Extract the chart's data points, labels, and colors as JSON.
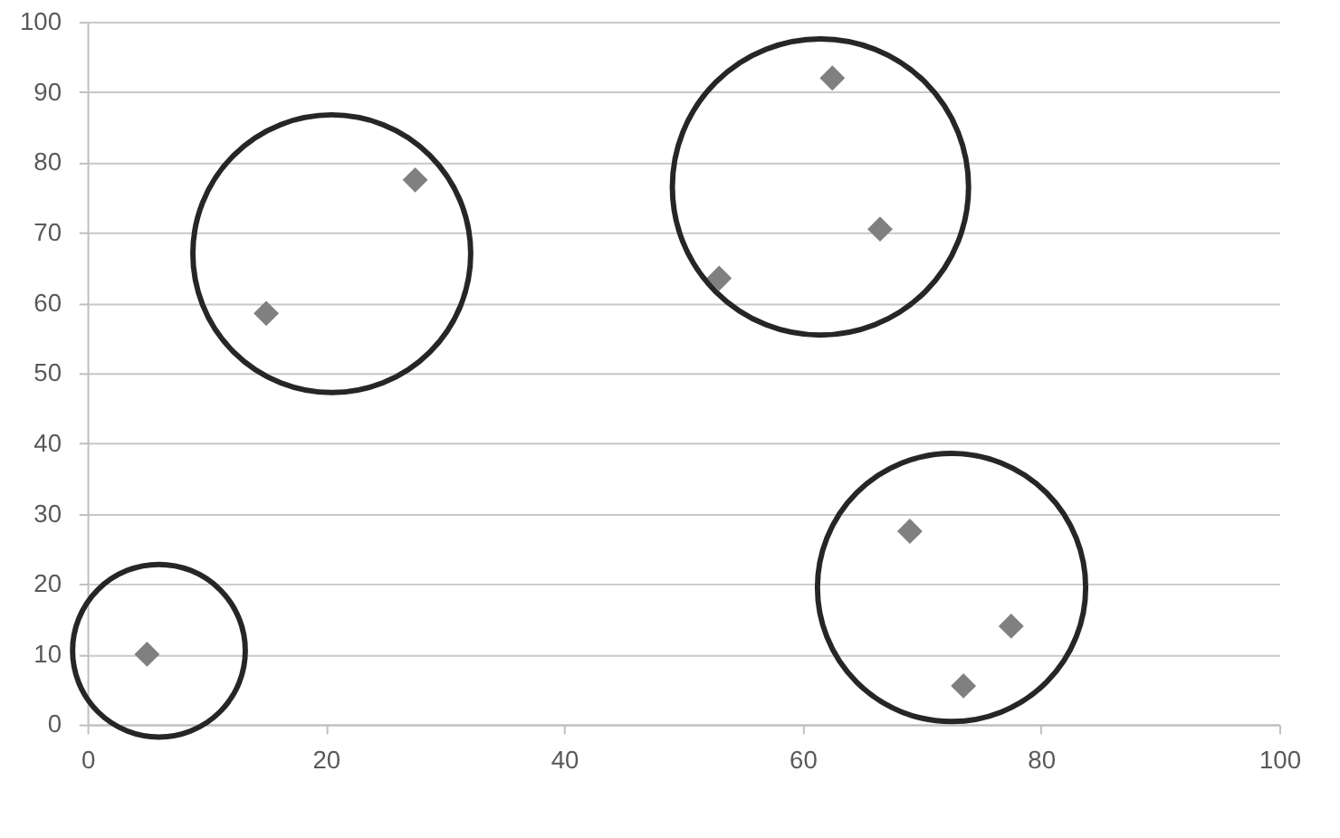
{
  "chart_data": {
    "type": "scatter",
    "xlim": [
      0,
      100
    ],
    "xticks": [
      0,
      20,
      40,
      60,
      80,
      100
    ],
    "ylim": [
      0,
      100
    ],
    "yticks": [
      0,
      10,
      20,
      30,
      40,
      50,
      60,
      70,
      80,
      90,
      100
    ],
    "grid": "y",
    "series": [
      {
        "color": "#808080",
        "marker": "diamond",
        "x": [
          5,
          15,
          27.5,
          53,
          62.5,
          66.5,
          69,
          73.5,
          77.5
        ],
        "values": [
          10,
          58.5,
          77.5,
          63.5,
          92,
          70.5,
          27.5,
          5.5,
          14
        ]
      },
      {
        "type": "bubble",
        "color": "#262626",
        "marker": "circle",
        "x": [
          6,
          20.5,
          61.5,
          72.5
        ],
        "values": [
          10.5,
          67,
          76.5,
          19.5
        ],
        "sizes": [
          0.34,
          0.88,
          1,
          0.82
        ]
      }
    ]
  }
}
